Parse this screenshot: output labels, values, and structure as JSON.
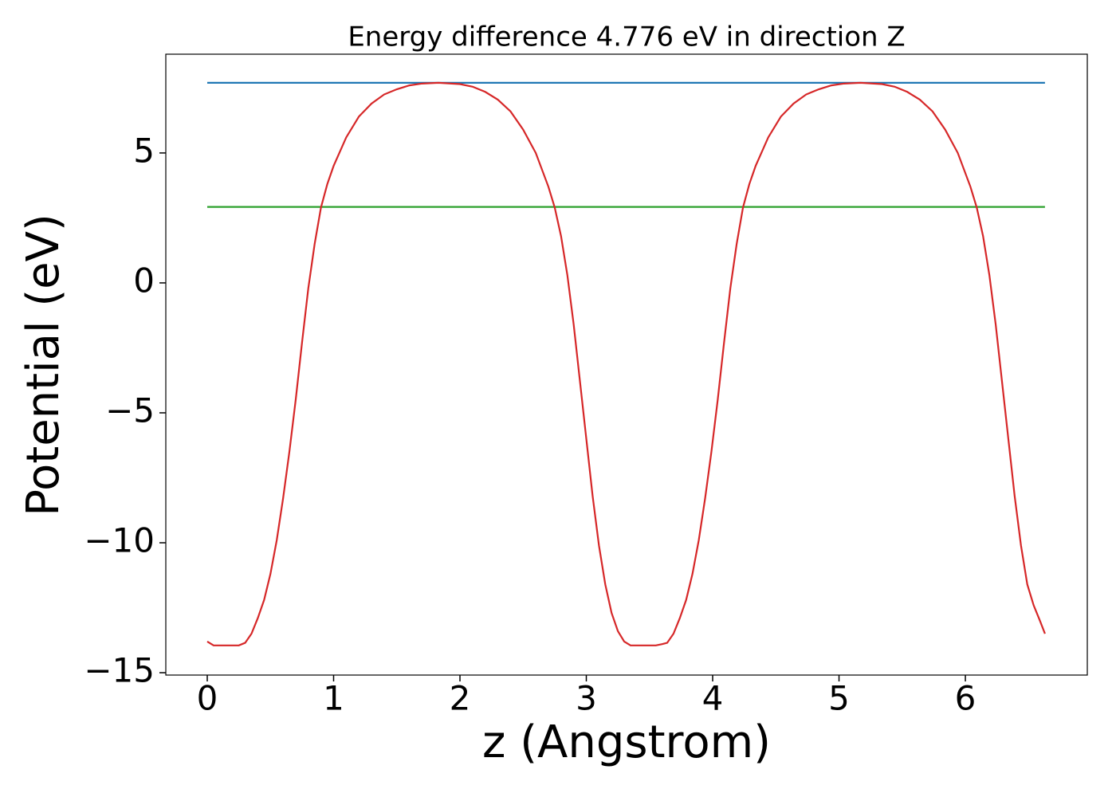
{
  "chart_data": {
    "type": "line",
    "title": "Energy difference 4.776 eV in direction Z",
    "xlabel": "z (Angstrom)",
    "ylabel": "Potential (eV)",
    "xlim": [
      -0.328,
      6.965
    ],
    "ylim": [
      -15.09,
      8.8
    ],
    "xticks": [
      0,
      1,
      2,
      3,
      4,
      5,
      6
    ],
    "yticks": [
      {
        "value": -15,
        "label": "−15"
      },
      {
        "value": -10,
        "label": "−10"
      },
      {
        "value": -5,
        "label": "−5"
      },
      0,
      5
    ],
    "series": [
      {
        "color": "#1f77b4",
        "x": [
          0,
          6.63
        ],
        "values": [
          7.7,
          7.7
        ]
      },
      {
        "color": "#2ca02c",
        "x": [
          0,
          6.63
        ],
        "values": [
          2.924,
          2.924
        ]
      },
      {
        "color": "#d62728",
        "x": [
          0,
          0.05,
          0.1,
          0.15,
          0.2,
          0.25,
          0.3,
          0.35,
          0.4,
          0.45,
          0.5,
          0.55,
          0.6,
          0.65,
          0.7,
          0.75,
          0.8,
          0.85,
          0.9,
          0.95,
          1.0,
          1.1,
          1.2,
          1.3,
          1.4,
          1.5,
          1.6,
          1.7,
          1.83,
          2.0,
          2.1,
          2.2,
          2.3,
          2.4,
          2.5,
          2.6,
          2.7,
          2.75,
          2.8,
          2.85,
          2.9,
          2.95,
          3.0,
          3.05,
          3.1,
          3.15,
          3.2,
          3.25,
          3.3,
          3.35,
          3.45,
          3.55,
          3.6,
          3.64,
          3.69,
          3.74,
          3.79,
          3.84,
          3.89,
          3.94,
          3.99,
          4.04,
          4.09,
          4.14,
          4.19,
          4.24,
          4.29,
          4.34,
          4.44,
          4.54,
          4.64,
          4.74,
          4.84,
          4.94,
          5.04,
          5.17,
          5.34,
          5.44,
          5.54,
          5.64,
          5.74,
          5.84,
          5.94,
          6.04,
          6.09,
          6.14,
          6.19,
          6.24,
          6.29,
          6.34,
          6.39,
          6.44,
          6.49,
          6.54,
          6.59,
          6.63
        ],
        "values": [
          -13.8,
          -13.95,
          -13.95,
          -13.95,
          -13.95,
          -13.95,
          -13.85,
          -13.5,
          -12.9,
          -12.2,
          -11.2,
          -9.9,
          -8.3,
          -6.5,
          -4.5,
          -2.3,
          -0.2,
          1.5,
          2.9,
          3.8,
          4.5,
          5.6,
          6.4,
          6.9,
          7.25,
          7.45,
          7.6,
          7.67,
          7.7,
          7.65,
          7.55,
          7.35,
          7.05,
          6.6,
          5.9,
          5.0,
          3.7,
          2.9,
          1.8,
          0.3,
          -1.6,
          -3.8,
          -6.0,
          -8.2,
          -10.1,
          -11.6,
          -12.7,
          -13.4,
          -13.8,
          -13.95,
          -13.95,
          -13.95,
          -13.9,
          -13.85,
          -13.5,
          -12.9,
          -12.2,
          -11.2,
          -9.9,
          -8.3,
          -6.5,
          -4.5,
          -2.3,
          -0.2,
          1.5,
          2.9,
          3.8,
          4.5,
          5.6,
          6.4,
          6.9,
          7.25,
          7.45,
          7.6,
          7.67,
          7.7,
          7.65,
          7.55,
          7.35,
          7.05,
          6.6,
          5.9,
          5.0,
          3.7,
          2.9,
          1.8,
          0.3,
          -1.6,
          -3.8,
          -6.0,
          -8.2,
          -10.1,
          -11.6,
          -12.4,
          -13.0,
          -13.5
        ]
      }
    ]
  }
}
